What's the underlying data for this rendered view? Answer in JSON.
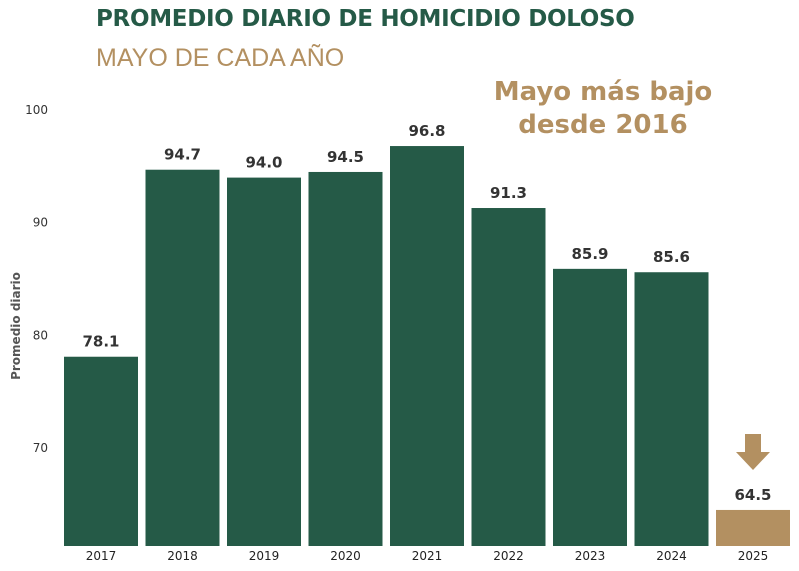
{
  "header": {
    "title": "PROMEDIO DIARIO DE HOMICIDIO DOLOSO",
    "subtitle": "MAYO DE CADA AÑO",
    "callout_line1": "Mayo más bajo",
    "callout_line2": "desde 2016"
  },
  "colors": {
    "bar": "#255a47",
    "highlight": "#b39061",
    "title": "#255a47",
    "subtitle": "#b39061"
  },
  "chart_data": {
    "type": "bar",
    "title": "PROMEDIO DIARIO DE HOMICIDIO DOLOSO",
    "subtitle": "MAYO DE CADA AÑO",
    "xlabel": "",
    "ylabel": "Promedio diario",
    "categories": [
      "2017",
      "2018",
      "2019",
      "2020",
      "2021",
      "2022",
      "2023",
      "2024",
      "2025"
    ],
    "values": [
      78.1,
      94.7,
      94.0,
      94.5,
      96.8,
      91.3,
      85.9,
      85.6,
      64.5
    ],
    "data_labels": [
      "78.1",
      "94.7",
      "94.0",
      "94.5",
      "96.8",
      "91.3",
      "85.9",
      "85.6",
      "64.5"
    ],
    "highlight_category": "2025",
    "highlight_icon": "down-arrow-icon",
    "yticks": [
      70,
      80,
      90,
      100
    ],
    "ylim": [
      61.3,
      100
    ],
    "grid": false,
    "legend": "none"
  }
}
